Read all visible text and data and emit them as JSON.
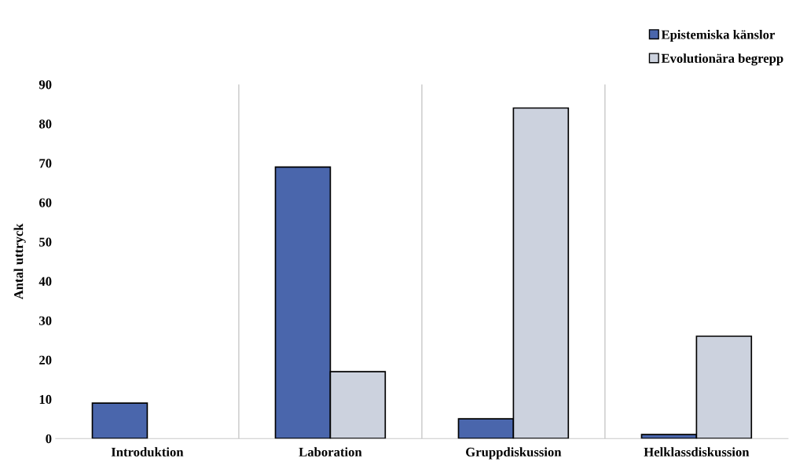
{
  "chart_data": {
    "type": "bar",
    "ylabel": "Antal uttryck",
    "categories": [
      "Introduktion",
      "Laboration",
      "Gruppdiskussion",
      "Helklassdiskussion"
    ],
    "series": [
      {
        "name": "Epistemiska känslor",
        "color": "#4a66ac",
        "values": [
          9,
          69,
          5,
          1
        ]
      },
      {
        "name": "Evolutionära begrepp",
        "color": "#ccd2de",
        "values": [
          null,
          17,
          84,
          26
        ]
      }
    ],
    "ylim": [
      0,
      90
    ],
    "yticks": [
      0,
      10,
      20,
      30,
      40,
      50,
      60,
      70,
      80,
      90
    ],
    "grid": "x",
    "legend": "top right"
  }
}
